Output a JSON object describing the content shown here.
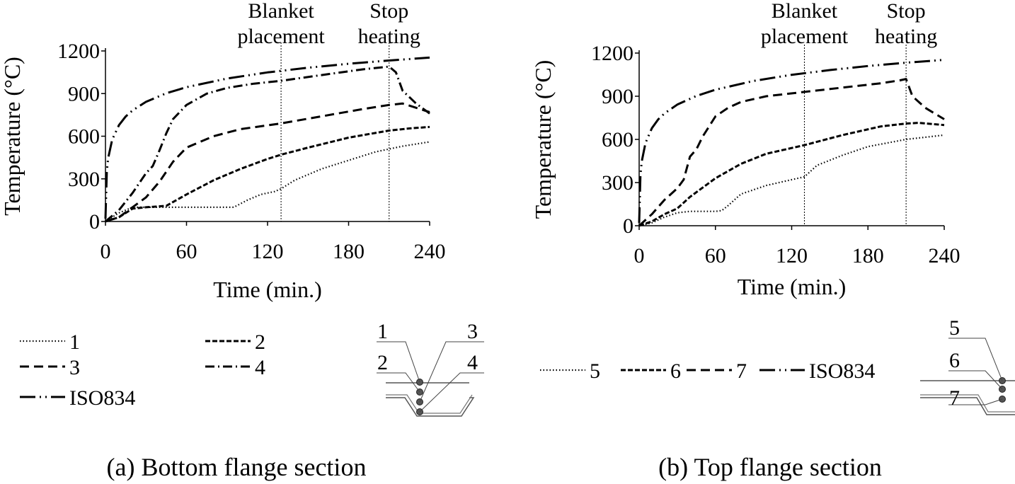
{
  "chart_data": [
    {
      "type": "line",
      "caption": "(a) Bottom flange section",
      "xlabel": "Time (min.)",
      "ylabel": "Temperature (°C)",
      "xlim": [
        0,
        240
      ],
      "ylim": [
        0,
        1200
      ],
      "xticks": [
        0,
        60,
        120,
        180,
        240
      ],
      "yticks": [
        0,
        300,
        600,
        900,
        1200
      ],
      "grid": false,
      "annotations": [
        {
          "x": 130,
          "lines": [
            "Blanket",
            "placement"
          ]
        },
        {
          "x": 210,
          "lines": [
            "Stop",
            "heating"
          ]
        }
      ],
      "legend_position": "below",
      "series": [
        {
          "name": "1",
          "style": "dotted",
          "x": [
            0,
            5,
            10,
            20,
            40,
            60,
            80,
            95,
            105,
            115,
            125,
            130,
            140,
            160,
            180,
            200,
            210,
            220,
            240
          ],
          "y": [
            0,
            30,
            60,
            100,
            100,
            100,
            100,
            100,
            150,
            190,
            210,
            230,
            290,
            370,
            430,
            490,
            510,
            530,
            560
          ]
        },
        {
          "name": "2",
          "style": "short-dash",
          "x": [
            0,
            10,
            20,
            30,
            45,
            60,
            80,
            100,
            120,
            130,
            150,
            180,
            210,
            225,
            240
          ],
          "y": [
            0,
            30,
            90,
            100,
            110,
            190,
            290,
            370,
            440,
            470,
            520,
            590,
            640,
            655,
            665
          ]
        },
        {
          "name": "3",
          "style": "dash",
          "x": [
            0,
            10,
            20,
            30,
            40,
            50,
            60,
            80,
            100,
            130,
            160,
            190,
            210,
            220,
            230,
            240
          ],
          "y": [
            0,
            30,
            100,
            170,
            280,
            420,
            520,
            600,
            650,
            690,
            740,
            790,
            820,
            830,
            800,
            770
          ]
        },
        {
          "name": "4",
          "style": "dash-dot",
          "x": [
            0,
            10,
            20,
            30,
            35,
            40,
            45,
            50,
            60,
            75,
            90,
            110,
            130,
            160,
            190,
            205,
            210,
            215,
            220,
            230,
            240
          ],
          "y": [
            0,
            80,
            200,
            340,
            390,
            500,
            620,
            720,
            820,
            900,
            940,
            970,
            990,
            1030,
            1070,
            1085,
            1090,
            1050,
            920,
            830,
            760
          ]
        },
        {
          "name": "ISO834",
          "style": "long-dash-dot-dot",
          "x": [
            0,
            1,
            2,
            5,
            10,
            15,
            20,
            30,
            45,
            60,
            90,
            120,
            150,
            180,
            210,
            240
          ],
          "y": [
            20,
            350,
            445,
            576,
            678,
            739,
            781,
            842,
            902,
            945,
            1006,
            1049,
            1082,
            1110,
            1133,
            1153
          ]
        }
      ],
      "legend": [
        {
          "series": "1",
          "label": "1"
        },
        {
          "series": "2",
          "label": "2"
        },
        {
          "series": "3",
          "label": "3"
        },
        {
          "series": "4",
          "label": "4"
        },
        {
          "series": "ISO834",
          "label": "ISO834"
        }
      ],
      "inset_labels": [
        "1",
        "2",
        "3",
        "4"
      ]
    },
    {
      "type": "line",
      "caption": "(b) Top flange section",
      "xlabel": "Time (min.)",
      "ylabel": "Temperature (°C)",
      "xlim": [
        0,
        240
      ],
      "ylim": [
        0,
        1200
      ],
      "xticks": [
        0,
        60,
        120,
        180,
        240
      ],
      "yticks": [
        0,
        300,
        600,
        900,
        1200
      ],
      "grid": false,
      "annotations": [
        {
          "x": 130,
          "lines": [
            "Blanket",
            "placement"
          ]
        },
        {
          "x": 210,
          "lines": [
            "Stop",
            "heating"
          ]
        }
      ],
      "legend_position": "below",
      "series": [
        {
          "name": "5",
          "style": "dotted",
          "x": [
            0,
            10,
            20,
            30,
            40,
            50,
            60,
            65,
            70,
            80,
            100,
            120,
            130,
            140,
            160,
            180,
            210,
            240
          ],
          "y": [
            0,
            20,
            60,
            90,
            100,
            100,
            100,
            105,
            140,
            220,
            280,
            320,
            340,
            420,
            490,
            550,
            600,
            630
          ]
        },
        {
          "name": "6",
          "style": "short-dash",
          "x": [
            0,
            10,
            20,
            30,
            40,
            60,
            80,
            100,
            130,
            160,
            190,
            210,
            220,
            240
          ],
          "y": [
            0,
            30,
            80,
            120,
            200,
            330,
            430,
            500,
            560,
            630,
            690,
            710,
            715,
            700
          ]
        },
        {
          "name": "7",
          "style": "dash",
          "x": [
            0,
            10,
            20,
            30,
            35,
            40,
            45,
            50,
            55,
            60,
            70,
            80,
            100,
            130,
            160,
            190,
            205,
            210,
            215,
            225,
            240
          ],
          "y": [
            0,
            80,
            180,
            260,
            320,
            480,
            530,
            620,
            690,
            760,
            820,
            860,
            900,
            930,
            960,
            990,
            1010,
            1020,
            900,
            820,
            740
          ]
        },
        {
          "name": "ISO834",
          "style": "long-dash-dot-dot",
          "x": [
            0,
            1,
            2,
            5,
            10,
            15,
            20,
            30,
            45,
            60,
            90,
            120,
            150,
            180,
            210,
            240
          ],
          "y": [
            20,
            350,
            445,
            576,
            678,
            739,
            781,
            842,
            902,
            945,
            1006,
            1049,
            1082,
            1110,
            1133,
            1153
          ]
        }
      ],
      "legend": [
        {
          "series": "5",
          "label": "5"
        },
        {
          "series": "6",
          "label": "6"
        },
        {
          "series": "7",
          "label": "7"
        },
        {
          "series": "ISO834",
          "label": "ISO834"
        }
      ],
      "inset_labels": [
        "5",
        "6",
        "7"
      ]
    }
  ]
}
